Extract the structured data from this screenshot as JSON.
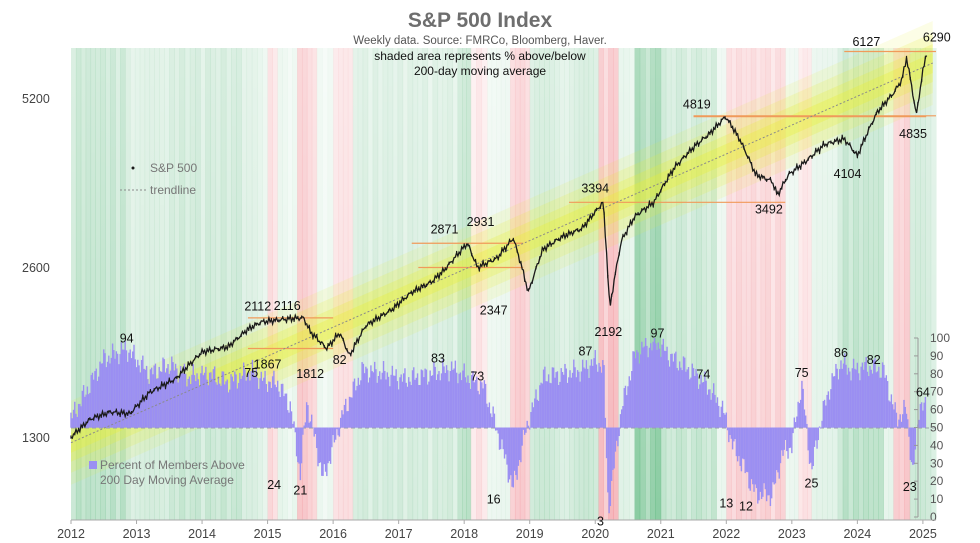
{
  "chart_data": {
    "type": "line",
    "title": "S&P 500 Index",
    "subtitle": "Weekly data.  Source: FMRCo, Bloomberg, Haver.",
    "note_lines": [
      "shaded area represents % above/below",
      "200-day moving average"
    ],
    "x_ticks": [
      "2012",
      "2013",
      "2014",
      "2015",
      "2016",
      "2017",
      "2018",
      "2019",
      "2020",
      "2021",
      "2022",
      "2023",
      "2024",
      "2025"
    ],
    "y_left_ticks": [
      "5200",
      "2600",
      "1300"
    ],
    "y_left_scale": "log",
    "y_right_ticks": [
      "100",
      "90",
      "80",
      "70",
      "60",
      "50",
      "40",
      "30",
      "20",
      "10",
      "0"
    ],
    "series": [
      {
        "name": "S&P 500",
        "kind": "price-line",
        "color": "#1a1a1a",
        "x": [
          2012.0,
          2012.3,
          2012.6,
          2012.9,
          2013.2,
          2013.6,
          2014.0,
          2014.4,
          2014.7,
          2014.9,
          2015.2,
          2015.4,
          2015.55,
          2015.65,
          2015.9,
          2016.1,
          2016.25,
          2016.5,
          2016.9,
          2017.2,
          2017.5,
          2017.7,
          2018.05,
          2018.2,
          2018.5,
          2018.75,
          2018.98,
          2019.2,
          2019.5,
          2019.8,
          2020.12,
          2020.22,
          2020.4,
          2020.6,
          2020.9,
          2021.2,
          2021.5,
          2021.75,
          2021.99,
          2022.2,
          2022.45,
          2022.7,
          2022.78,
          2022.95,
          2023.2,
          2023.5,
          2023.8,
          2024.0,
          2024.3,
          2024.55,
          2024.68,
          2024.75,
          2024.9,
          2025.0,
          2025.06
        ],
        "y": [
          1300,
          1400,
          1440,
          1430,
          1560,
          1650,
          1840,
          1880,
          2020,
          2080,
          2100,
          2112,
          2116,
          2000,
          1867,
          1990,
          1812,
          2050,
          2190,
          2350,
          2450,
          2575,
          2871,
          2600,
          2700,
          2931,
          2347,
          2800,
          2950,
          3050,
          3394,
          2192,
          2900,
          3200,
          3400,
          3900,
          4250,
          4500,
          4819,
          4400,
          3800,
          3700,
          3492,
          3800,
          4000,
          4300,
          4400,
          4104,
          4900,
          5300,
          5600,
          6127,
          4835,
          5800,
          6290
        ]
      },
      {
        "name": "trendline",
        "kind": "dotted-line",
        "color": "#8a8a8a",
        "x": [
          2012.0,
          2025.15
        ],
        "y": [
          1270,
          6000
        ]
      },
      {
        "name": "Percent of Members Above 200 Day Moving Average",
        "kind": "bars",
        "color": "#9b8ff2",
        "x": [
          2012.0,
          2012.5,
          2012.85,
          2013.2,
          2013.5,
          2013.8,
          2014.1,
          2014.4,
          2014.75,
          2014.95,
          2015.15,
          2015.35,
          2015.5,
          2015.6,
          2015.85,
          2016.15,
          2016.45,
          2016.8,
          2017.1,
          2017.5,
          2017.8,
          2018.05,
          2018.3,
          2018.45,
          2018.75,
          2018.95,
          2019.2,
          2019.5,
          2019.8,
          2020.0,
          2020.13,
          2020.2,
          2020.4,
          2020.6,
          2020.75,
          2020.95,
          2021.2,
          2021.45,
          2021.7,
          2021.95,
          2022.1,
          2022.3,
          2022.45,
          2022.7,
          2022.85,
          2023.0,
          2023.15,
          2023.3,
          2023.45,
          2023.6,
          2023.75,
          2023.9,
          2024.15,
          2024.4,
          2024.6,
          2024.75,
          2024.85,
          2024.95,
          2025.05
        ],
        "y": [
          55,
          88,
          94,
          80,
          85,
          78,
          80,
          75,
          82,
          76,
          75,
          62,
          24,
          65,
          21,
          58,
          82,
          80,
          77,
          80,
          83,
          78,
          73,
          55,
          16,
          50,
          78,
          80,
          82,
          87,
          84,
          3,
          60,
          90,
          95,
          97,
          88,
          82,
          74,
          60,
          40,
          25,
          13,
          12,
          35,
          40,
          75,
          25,
          55,
          75,
          86,
          82,
          84,
          82,
          55,
          60,
          23,
          64,
          60
        ]
      }
    ],
    "annotations": {
      "price_labels": [
        "6127",
        "6290",
        "4819",
        "4835",
        "4104",
        "3394",
        "3492",
        "2871",
        "2931",
        "2347",
        "2192",
        "2112",
        "2116",
        "1867",
        "1812"
      ],
      "breadth_labels": [
        "94",
        "75",
        "82",
        "83",
        "73",
        "87",
        "97",
        "74",
        "75",
        "86",
        "82",
        "64",
        "24",
        "21",
        "16",
        "3",
        "13",
        "12",
        "25",
        "23"
      ]
    },
    "colors": {
      "price": "#1a1a1a",
      "breadth_bars": "#9b8ff2",
      "support_lines": "#f09a5a",
      "band_above": "#1f9d4d",
      "band_below": "#e8505b",
      "trend_band": "#e8ef34",
      "neutral_line": "#9aa0a6"
    },
    "legend": {
      "position": "left"
    },
    "grid": false
  }
}
